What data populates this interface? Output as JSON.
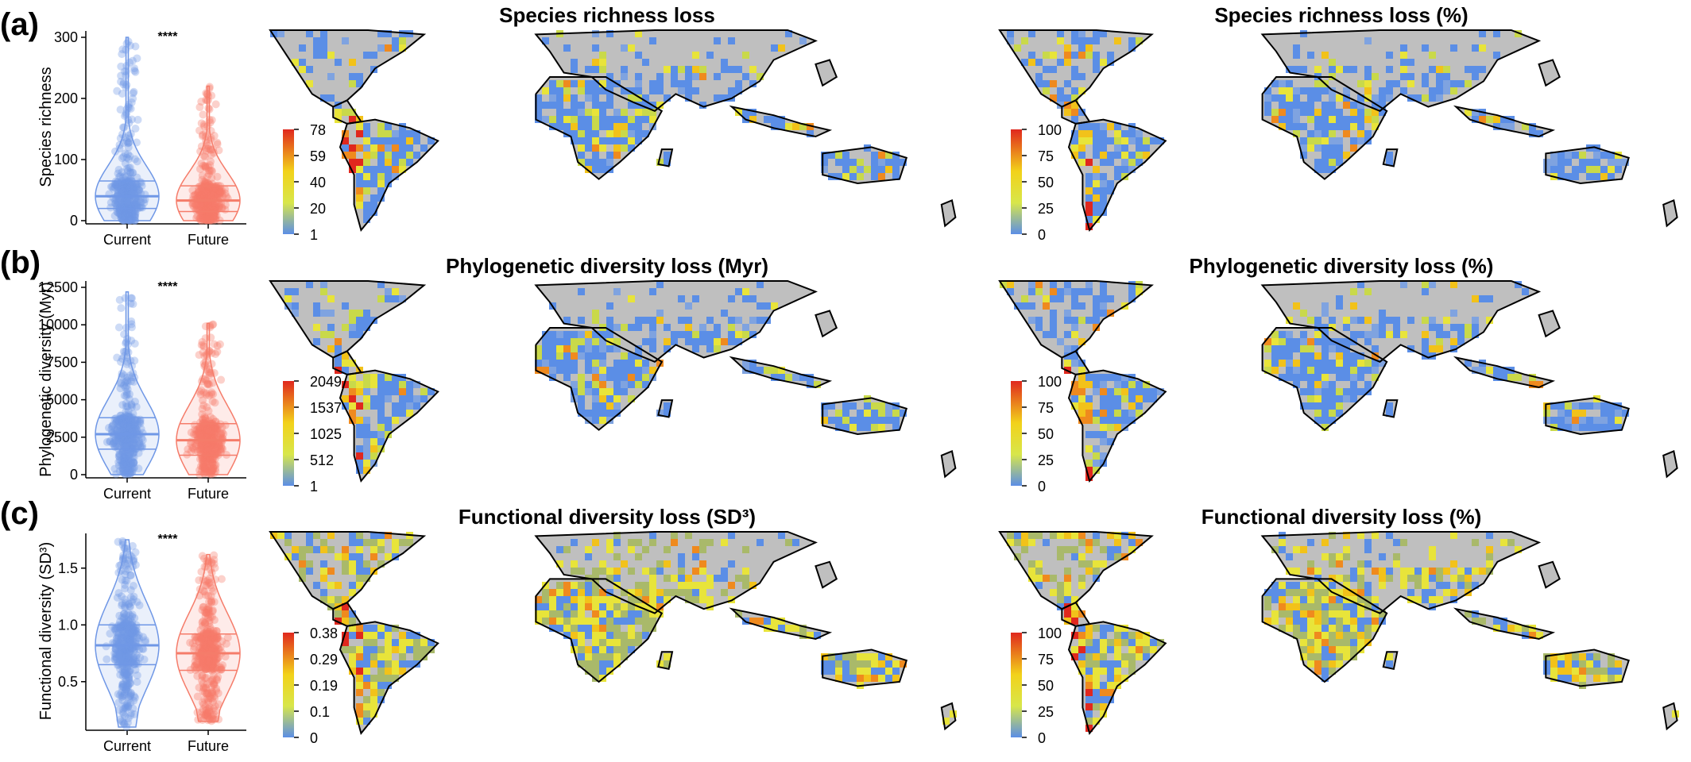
{
  "panels": [
    {
      "letter": "(a)",
      "violin": {
        "ylabel": "Species richness",
        "yticks": [
          "300",
          "200",
          "100",
          "0"
        ],
        "ytick_values": [
          300,
          200,
          100,
          0
        ],
        "ylim": [
          0,
          300
        ],
        "categories": [
          "Current",
          "Future"
        ],
        "significance": "****"
      },
      "maps": [
        {
          "title": "Species richness loss",
          "colorbar_ticks": [
            "78",
            "59",
            "40",
            "20",
            "1"
          ]
        },
        {
          "title": "Species richness loss (%)",
          "colorbar_ticks": [
            "100",
            "75",
            "50",
            "25",
            "0"
          ]
        }
      ]
    },
    {
      "letter": "(b)",
      "violin": {
        "ylabel": "Phylogenetic diversity (Myr)",
        "yticks": [
          "12500",
          "10000",
          "7500",
          "5000",
          "2500",
          "0"
        ],
        "ytick_values": [
          12500,
          10000,
          7500,
          5000,
          2500,
          0
        ],
        "ylim": [
          0,
          12500
        ],
        "categories": [
          "Current",
          "Future"
        ],
        "significance": "****"
      },
      "maps": [
        {
          "title": "Phylogenetic diversity loss (Myr)",
          "colorbar_ticks": [
            "2049",
            "1537",
            "1025",
            "512",
            "1"
          ]
        },
        {
          "title": "Phylogenetic diversity loss (%)",
          "colorbar_ticks": [
            "100",
            "75",
            "50",
            "25",
            "0"
          ]
        }
      ]
    },
    {
      "letter": "(c)",
      "violin": {
        "ylabel": "Functional diversity  (SD³)",
        "yticks": [
          "1.5",
          "1.0",
          "0.5"
        ],
        "ytick_values": [
          1.5,
          1.0,
          0.5
        ],
        "ylim": [
          0.1,
          1.75
        ],
        "categories": [
          "Current",
          "Future"
        ],
        "significance": "****"
      },
      "maps": [
        {
          "title": "Functional diversity loss (SD³)",
          "colorbar_ticks": [
            "0.38",
            "0.29",
            "0.19",
            "0.1",
            "0"
          ]
        },
        {
          "title": "Functional diversity loss (%)",
          "colorbar_ticks": [
            "100",
            "75",
            "50",
            "25",
            "0"
          ]
        }
      ]
    }
  ],
  "chart_data": [
    {
      "type": "violin",
      "ylabel": "Species richness",
      "categories": [
        "Current",
        "Future"
      ],
      "series": [
        {
          "name": "Current",
          "median": 40,
          "q1": 20,
          "q3": 65,
          "max": 300,
          "min": 0
        },
        {
          "name": "Future",
          "median": 33,
          "q1": 15,
          "q3": 57,
          "max": 220,
          "min": 0
        }
      ],
      "ylim": [
        0,
        300
      ],
      "significance": "****",
      "colors": [
        "#6f97e6",
        "#f57c6a"
      ]
    },
    {
      "type": "violin",
      "ylabel": "Phylogenetic diversity (Myr)",
      "categories": [
        "Current",
        "Future"
      ],
      "series": [
        {
          "name": "Current",
          "median": 2700,
          "q1": 1700,
          "q3": 3800,
          "max": 12200,
          "min": 0
        },
        {
          "name": "Future",
          "median": 2300,
          "q1": 1300,
          "q3": 3400,
          "max": 10100,
          "min": 0
        }
      ],
      "ylim": [
        0,
        12500
      ],
      "significance": "****",
      "colors": [
        "#6f97e6",
        "#f57c6a"
      ]
    },
    {
      "type": "violin",
      "ylabel": "Functional diversity (SD³)",
      "categories": [
        "Current",
        "Future"
      ],
      "series": [
        {
          "name": "Current",
          "median": 0.82,
          "q1": 0.65,
          "q3": 1.0,
          "max": 1.75,
          "min": 0.1
        },
        {
          "name": "Future",
          "median": 0.75,
          "q1": 0.6,
          "q3": 0.92,
          "max": 1.62,
          "min": 0.15
        }
      ],
      "ylim": [
        0.1,
        1.75
      ],
      "significance": "****",
      "colors": [
        "#6f97e6",
        "#f57c6a"
      ]
    }
  ],
  "colors": {
    "current": "#6f97e6",
    "future": "#f57c6a",
    "land": "#bfbfbf",
    "low": "#5b8ee6",
    "mid": "#f2e533",
    "high": "#e0281e"
  }
}
